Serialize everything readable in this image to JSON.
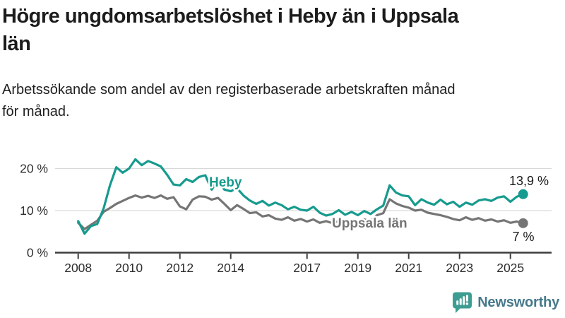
{
  "title": {
    "lines": [
      "Högre ungdomsarbetslöshet i Heby än i Uppsala",
      "län"
    ]
  },
  "subtitle": {
    "lines": [
      "Arbetssökande som andel av den registerbaserade arbetskraften månad",
      "för månad."
    ]
  },
  "chart_data": {
    "type": "line",
    "title": "Högre ungdomsarbetslöshet i Heby än i Uppsala län",
    "subtitle": "Arbetssökande som andel av den registerbaserade arbetskraften månad för månad.",
    "x_unit": "decimal year (quarterly estimates read from monthly curve)",
    "x_start": 2008.0,
    "x_step": 0.25,
    "xlim": [
      2007.1,
      2026.6
    ],
    "ylim": [
      0,
      25
    ],
    "grid": "horizontal",
    "legend": "inline-labels",
    "series": [
      {
        "name": "Heby",
        "color": "#169b8e",
        "end_label": "13,9 %",
        "values": [
          7.5,
          4.5,
          6.3,
          6.8,
          10.5,
          16.0,
          20.3,
          19.0,
          20.0,
          22.2,
          20.8,
          21.8,
          21.2,
          20.5,
          18.5,
          16.2,
          16.0,
          17.5,
          16.8,
          18.0,
          18.4,
          15.0,
          17.2,
          15.0,
          14.6,
          15.3,
          13.6,
          12.4,
          11.6,
          12.3,
          11.2,
          11.9,
          11.3,
          10.3,
          10.9,
          10.2,
          10.0,
          10.9,
          9.5,
          8.8,
          9.2,
          10.1,
          9.0,
          9.7,
          8.9,
          9.9,
          9.2,
          10.3,
          11.2,
          16.0,
          14.3,
          13.6,
          13.4,
          11.3,
          12.7,
          11.9,
          11.4,
          12.6,
          11.5,
          12.1,
          10.9,
          11.9,
          11.4,
          12.4,
          12.7,
          12.3,
          13.1,
          13.4,
          12.1,
          13.3,
          13.9
        ]
      },
      {
        "name": "Uppsala län",
        "color": "#757575",
        "end_label": "7 %",
        "values": [
          7.1,
          5.6,
          6.6,
          7.6,
          9.7,
          10.6,
          11.6,
          12.3,
          13.0,
          13.6,
          13.1,
          13.5,
          13.0,
          13.6,
          12.8,
          13.2,
          11.0,
          10.3,
          12.6,
          13.4,
          13.3,
          12.6,
          13.0,
          11.6,
          10.1,
          11.3,
          10.4,
          9.4,
          9.6,
          8.6,
          8.9,
          8.1,
          7.8,
          8.4,
          7.6,
          8.0,
          7.4,
          7.9,
          7.1,
          7.5,
          7.0,
          7.5,
          7.1,
          7.6,
          7.3,
          7.9,
          7.5,
          8.9,
          9.4,
          12.7,
          11.7,
          11.1,
          10.7,
          10.0,
          10.2,
          9.5,
          9.2,
          8.9,
          8.5,
          8.0,
          7.7,
          8.4,
          7.8,
          8.2,
          7.6,
          7.9,
          7.4,
          7.7,
          7.1,
          7.4,
          7.0
        ]
      }
    ],
    "x_ticks": [
      {
        "label": "2008",
        "year": 2008
      },
      {
        "label": "2010",
        "year": 2010
      },
      {
        "label": "2012",
        "year": 2012
      },
      {
        "label": "2014",
        "year": 2014
      },
      {
        "label": "2017",
        "year": 2017
      },
      {
        "label": "2019",
        "year": 2019
      },
      {
        "label": "2021",
        "year": 2021
      },
      {
        "label": "2023",
        "year": 2023
      },
      {
        "label": "2025",
        "year": 2025
      }
    ],
    "y_ticks": [
      {
        "label": "0 %",
        "value": 0
      },
      {
        "label": "10 %",
        "value": 10
      },
      {
        "label": "20 %",
        "value": 20
      }
    ]
  },
  "colors": {
    "heby_line": "#169b8e",
    "uppsala_line": "#757575",
    "gridline": "#d9d9d9",
    "axis": "#3d3d3d",
    "logo_icon": "#3d9d93",
    "logo_text": "#45798b"
  },
  "logo": {
    "text": "Newsworthy",
    "icon": "bar-chart-speech-bubble-icon"
  }
}
